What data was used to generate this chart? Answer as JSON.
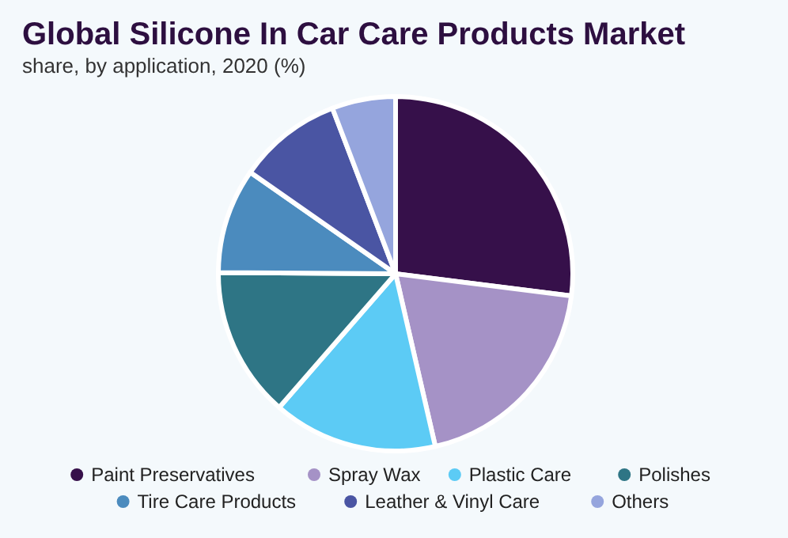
{
  "chart_data": {
    "type": "pie",
    "title": "Global Silicone In Car Care Products Market",
    "subtitle": "share, by application, 2020 (%)",
    "categories": [
      "Paint Preservatives",
      "Spray Wax",
      "Plastic Care",
      "Polishes",
      "Tire Care Products",
      "Leather & Vinyl Care",
      "Others"
    ],
    "values": [
      27,
      19.4,
      15,
      13.7,
      9.6,
      9.5,
      5.8
    ],
    "colors": [
      "#36104a",
      "#a592c6",
      "#5ccbf5",
      "#2e7585",
      "#4b8bbe",
      "#4a55a3",
      "#95a5dd"
    ],
    "legend": "bottom"
  }
}
